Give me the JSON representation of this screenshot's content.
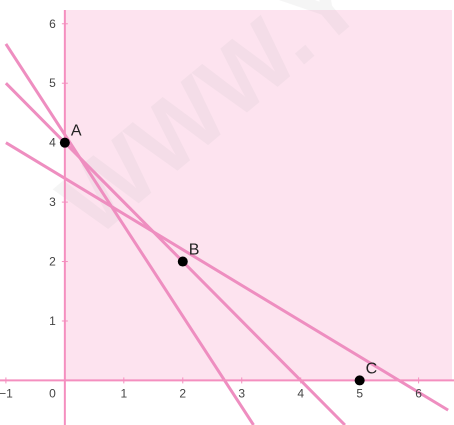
{
  "chart_data": {
    "type": "line",
    "title": "",
    "xlabel": "",
    "ylabel": "",
    "xlim": [
      -1.1,
      6.6
    ],
    "ylim": [
      -0.75,
      6.4
    ],
    "grid": false,
    "x_ticks": [
      -1,
      1,
      2,
      3,
      4,
      5,
      6
    ],
    "y_ticks": [
      1,
      2,
      3,
      4,
      5,
      6
    ],
    "origin_label": "0",
    "shaded_region": {
      "description": "feasible region",
      "x_from": 0,
      "color": "#fde3ef"
    },
    "lines": [
      {
        "from": [
          -1,
          5.66
        ],
        "to": [
          3.2,
          -0.75
        ]
      },
      {
        "from": [
          -1,
          5.0
        ],
        "to": [
          4.75,
          -0.75
        ]
      },
      {
        "from": [
          -1,
          4.0
        ],
        "to": [
          6.5,
          -0.5
        ]
      }
    ],
    "points": [
      {
        "label": "A",
        "x": 0,
        "y": 4
      },
      {
        "label": "B",
        "x": 2,
        "y": 2
      },
      {
        "label": "C",
        "x": 5,
        "y": 0
      }
    ],
    "colors": {
      "axis": "#f48fbf",
      "line": "#ee8ec0",
      "region": "#fde3ef",
      "point": "#000000"
    }
  },
  "watermark": "WWW.Y"
}
